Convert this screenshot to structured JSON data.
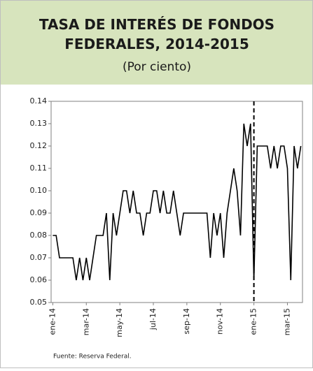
{
  "chart_data": {
    "type": "line",
    "title": "TASA DE INTERÉS DE FONDOS FEDERALES, 2014-2015",
    "subtitle": "(Por ciento)",
    "source": "Fuente: Reserva Federal.",
    "categories": [
      "ene-14",
      null,
      null,
      null,
      null,
      null,
      null,
      null,
      null,
      null,
      "mar-14",
      null,
      null,
      null,
      null,
      null,
      null,
      null,
      null,
      null,
      "may-14",
      null,
      null,
      null,
      null,
      null,
      null,
      null,
      null,
      null,
      "jul-14",
      null,
      null,
      null,
      null,
      null,
      null,
      null,
      null,
      null,
      "sep-14",
      null,
      null,
      null,
      null,
      null,
      null,
      null,
      null,
      null,
      "nov-14",
      null,
      null,
      null,
      null,
      null,
      null,
      null,
      null,
      null,
      "ene-15",
      null,
      null,
      null,
      null,
      null,
      null,
      null,
      null,
      null,
      "mar-15",
      null,
      null,
      null,
      null
    ],
    "values": [
      0.08,
      0.08,
      0.07,
      0.07,
      0.07,
      0.07,
      0.07,
      0.06,
      0.07,
      0.06,
      0.07,
      0.06,
      0.07,
      0.08,
      0.08,
      0.08,
      0.09,
      0.06,
      0.09,
      0.08,
      0.09,
      0.1,
      0.1,
      0.09,
      0.1,
      0.09,
      0.09,
      0.08,
      0.09,
      0.09,
      0.1,
      0.1,
      0.09,
      0.1,
      0.09,
      0.09,
      0.1,
      0.09,
      0.08,
      0.09,
      0.09,
      0.09,
      0.09,
      0.09,
      0.09,
      0.09,
      0.09,
      0.07,
      0.09,
      0.08,
      0.09,
      0.07,
      0.09,
      0.1,
      0.11,
      0.1,
      0.08,
      0.13,
      0.12,
      0.13,
      0.06,
      0.12,
      0.12,
      0.12,
      0.12,
      0.11,
      0.12,
      0.11,
      0.12,
      0.12,
      0.11,
      0.06,
      0.12,
      0.11,
      0.12
    ],
    "color": "#000000",
    "ylim": [
      0.05,
      0.14
    ],
    "yticks": [
      0.05,
      0.06,
      0.07,
      0.08,
      0.09,
      {
        "value": 0.1,
        "label": "0.10"
      },
      0.11,
      0.12,
      0.13,
      0.14
    ],
    "reference_line": {
      "category": "ene-15"
    },
    "grid": false
  }
}
